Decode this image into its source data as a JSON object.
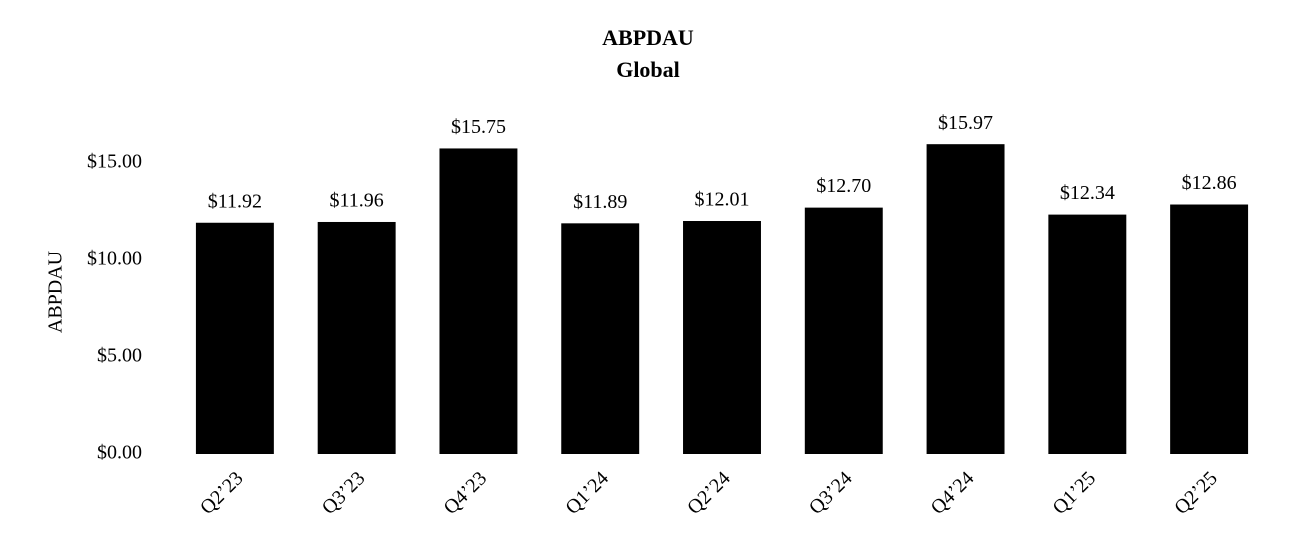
{
  "chart_data": {
    "type": "bar",
    "title": "ABPDAU",
    "subtitle": "Global",
    "y_label": "ABPDAU",
    "categories": [
      "Q2’23",
      "Q3’23",
      "Q4’23",
      "Q1’24",
      "Q2’24",
      "Q3’24",
      "Q4’24",
      "Q1’25",
      "Q2’25"
    ],
    "values": [
      11.92,
      11.96,
      15.75,
      11.89,
      12.01,
      12.7,
      15.97,
      12.34,
      12.86
    ],
    "value_labels": [
      "$11.92",
      "$11.96",
      "$15.75",
      "$11.89",
      "$12.01",
      "$12.70",
      "$15.97",
      "$12.34",
      "$12.86"
    ],
    "color": "#000000",
    "ylim": [
      0,
      17.5
    ],
    "yticks": [
      {
        "value": 0,
        "label": "$0.00"
      },
      {
        "value": 5,
        "label": "$5.00"
      },
      {
        "value": 10,
        "label": "$10.00"
      },
      {
        "value": 15,
        "label": "$15.00"
      }
    ],
    "grid": false
  }
}
